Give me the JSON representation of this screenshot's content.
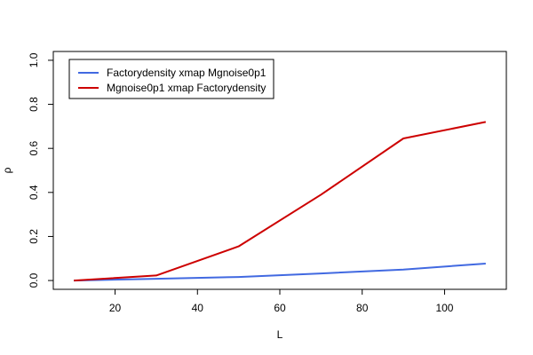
{
  "chart_data": {
    "type": "line",
    "xlabel": "L",
    "ylabel": "ρ",
    "xlim": [
      5,
      115
    ],
    "ylim": [
      -0.04,
      1.04
    ],
    "x_ticks": [
      20,
      40,
      60,
      80,
      100
    ],
    "x_tick_labels": [
      "20",
      "40",
      "60",
      "80",
      "100"
    ],
    "y_ticks": [
      0.0,
      0.2,
      0.4,
      0.6,
      0.8,
      1.0
    ],
    "y_tick_labels": [
      "0.0",
      "0.2",
      "0.4",
      "0.6",
      "0.8",
      "1.0"
    ],
    "x": [
      10,
      30,
      50,
      70,
      90,
      110
    ],
    "series": [
      {
        "name": "Factorydensity xmap Mgnoise0p1",
        "color": "#4169e1",
        "values": [
          0.0,
          0.008,
          0.016,
          0.032,
          0.05,
          0.077
        ]
      },
      {
        "name": "Mgnoise0p1 xmap Factorydensity",
        "color": "#cd0000",
        "values": [
          0.0,
          0.023,
          0.155,
          0.39,
          0.645,
          0.72
        ]
      }
    ],
    "grid": false,
    "legend_position": "top-left"
  }
}
